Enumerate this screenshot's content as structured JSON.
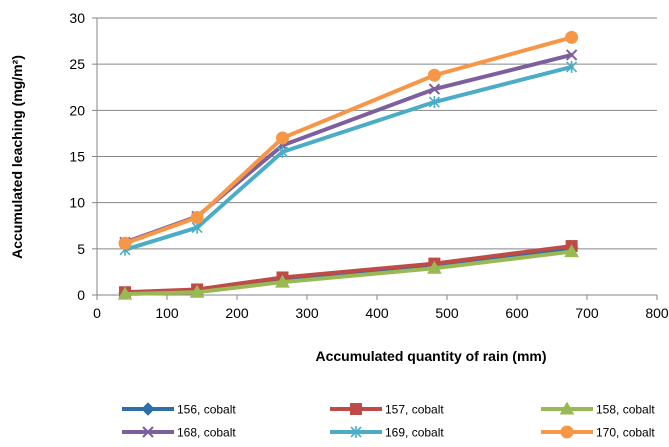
{
  "chart_data": {
    "type": "line",
    "title": "",
    "xlabel": "Accumulated quantity of rain (mm)",
    "ylabel": "Accumulated leaching (mg/m²)",
    "xlim": [
      0,
      800
    ],
    "ylim": [
      0,
      30
    ],
    "x_ticks": [
      0,
      100,
      200,
      300,
      400,
      500,
      600,
      700,
      800
    ],
    "y_ticks": [
      0,
      5,
      10,
      15,
      20,
      25,
      30
    ],
    "grid": "horizontal",
    "legend_position": "bottom",
    "x": [
      40,
      143,
      265,
      482,
      678
    ],
    "series": [
      {
        "name": "156, cobalt",
        "color": "#2E6EAA",
        "marker": "diamond",
        "values": [
          0.2,
          0.5,
          1.7,
          3.2,
          5.1
        ]
      },
      {
        "name": "157, cobalt",
        "color": "#BE4B48",
        "marker": "square",
        "values": [
          0.3,
          0.6,
          1.9,
          3.4,
          5.3
        ]
      },
      {
        "name": "158, cobalt",
        "color": "#98B954",
        "marker": "triangle",
        "values": [
          0.1,
          0.3,
          1.4,
          2.9,
          4.7
        ]
      },
      {
        "name": "168, cobalt",
        "color": "#7D5FA0",
        "marker": "x",
        "values": [
          5.7,
          8.5,
          16.2,
          22.3,
          26.0
        ]
      },
      {
        "name": "169, cobalt",
        "color": "#4BACC6",
        "marker": "star",
        "values": [
          4.9,
          7.3,
          15.5,
          20.9,
          24.7
        ]
      },
      {
        "name": "170, cobalt",
        "color": "#F79646",
        "marker": "circle",
        "values": [
          5.6,
          8.4,
          17.0,
          23.8,
          27.9
        ]
      }
    ]
  }
}
